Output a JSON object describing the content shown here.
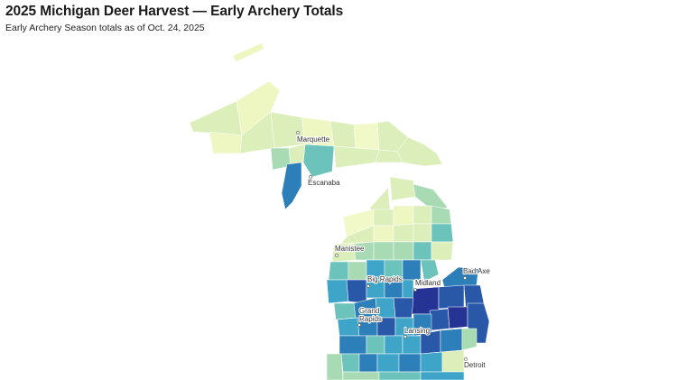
{
  "header": {
    "title": "2025 Michigan Deer Harvest — Early Archery Totals",
    "subtitle": "Early Archery Season totals as of Oct. 24, 2025"
  },
  "colors": {
    "scale": [
      "#f2f9c8",
      "#dcefbb",
      "#a8dbb4",
      "#6cc3bc",
      "#3fa5c8",
      "#2c7fb8",
      "#2a58a8",
      "#253494"
    ],
    "background": "#ffffff"
  },
  "cities": [
    {
      "name": "Marquette"
    },
    {
      "name": "Escanaba"
    },
    {
      "name": "Manistee"
    },
    {
      "name": "Big Rapids"
    },
    {
      "name": "Midland"
    },
    {
      "name": "Bad Axe"
    },
    {
      "name": "Grand Rapids"
    },
    {
      "name": "Lansing"
    },
    {
      "name": "Detroit"
    }
  ]
}
